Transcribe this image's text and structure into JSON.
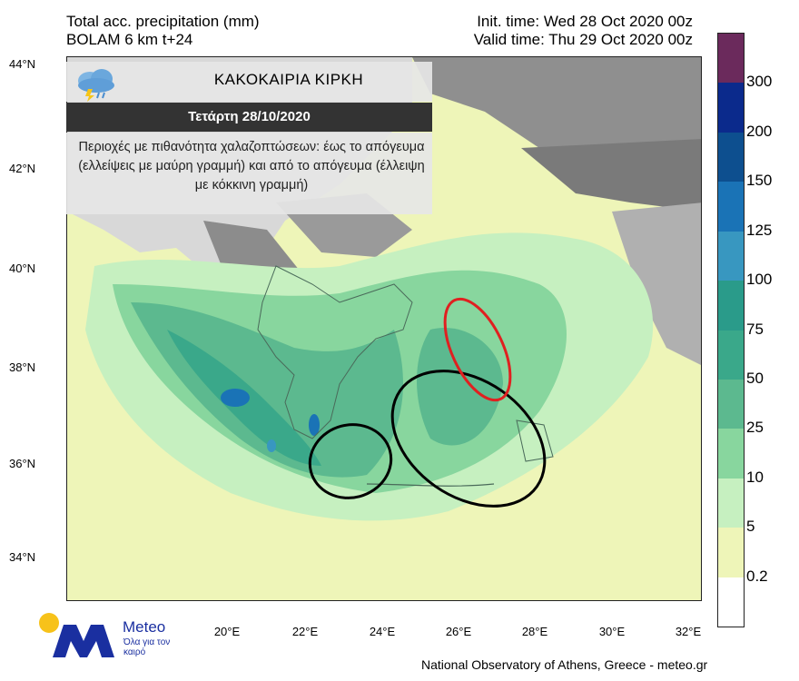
{
  "header": {
    "line1_left": "Total acc. precipitation (mm)",
    "line2_left": "BOLAM 6 km t+24",
    "line1_right": "Init. time: Wed 28 Oct 2020 00z",
    "line2_right": "Valid time: Thu 29 Oct 2020 00z"
  },
  "info_box": {
    "title": "ΚΑΚΟΚΑΙΡΙΑ ΚΙΡΚΗ",
    "date": "Τετάρτη 28/10/2020",
    "text": "Περιοχές με πιθανότητα χαλαζοπτώσεων: έως το απόγευμα (ελλείψεις με μαύρη γραμμή) και από το απόγευμα (έλλειψη με κόκκινη γραμμή)",
    "icon": "storm-cloud-icon"
  },
  "axes": {
    "lat_labels": [
      "44°N",
      "42°N",
      "40°N",
      "38°N",
      "36°N",
      "34°N"
    ],
    "lon_labels": [
      "20°E",
      "22°E",
      "24°E",
      "26°E",
      "28°E",
      "30°E",
      "32°E"
    ]
  },
  "colorbar": {
    "labels": [
      "300",
      "200",
      "150",
      "125",
      "100",
      "75",
      "50",
      "25",
      "10",
      "5",
      "0.2"
    ],
    "colors": [
      "#6b2a5c",
      "#0b2a8c",
      "#0d4f8f",
      "#1a73b6",
      "#3897c0",
      "#2a9b8a",
      "#3aa88a",
      "#5cb98f",
      "#88d69e",
      "#c6f0c0",
      "#eef5b8",
      "#ffffff"
    ]
  },
  "logo": {
    "title": "Meteo",
    "subtitle": "Όλα για τον καιρό",
    "icon": "meteo-m-logo-icon"
  },
  "footer": {
    "credit": "National Observatory of Athens, Greece - meteo.gr"
  }
}
